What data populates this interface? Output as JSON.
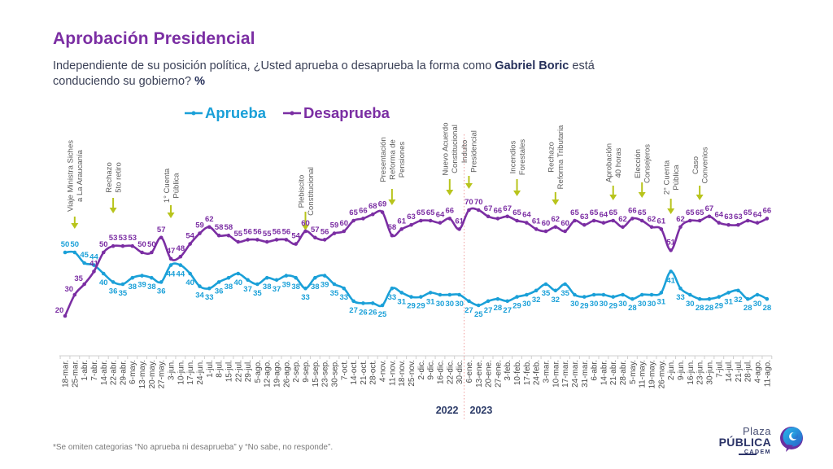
{
  "header": {
    "title": "Aprobación Presidencial",
    "subtitle": {
      "line1_pre": "Independiente de su posición política, ¿Usted aprueba o desaprueba la forma como ",
      "line1_bold": "Gabriel Boric",
      "line1_post": " está",
      "line2_pre": "conduciendo su gobierno? ",
      "line2_bold": "%"
    }
  },
  "legend": [
    {
      "label": "Aprueba",
      "color": "#1aa0d8"
    },
    {
      "label": "Desaprueba",
      "color": "#7b2ea3"
    }
  ],
  "chart_data": {
    "type": "line",
    "title": "Aprobación Presidencial",
    "xlabel": "",
    "ylabel": "",
    "ylim": [
      0,
      100
    ],
    "grid": false,
    "legend_position": "top-left",
    "categories": [
      "18-mar.",
      "25-mar.",
      "1-abr.",
      "7-abr.",
      "14-abr.",
      "22-abr.",
      "29-abr.",
      "6-may.",
      "13-may.",
      "20-may.",
      "27-may.",
      "3-jun.",
      "10-jun.",
      "17-jun.",
      "24-jun.",
      "1-jul.",
      "8-jul.",
      "15-jul.",
      "22-jul.",
      "29-jul.",
      "5-ago.",
      "12-ago.",
      "19-ago.",
      "26-ago.",
      "2-sep.",
      "9-sep.",
      "15-sep.",
      "23-sep.",
      "30-sep.",
      "7-oct.",
      "14-oct.",
      "21-oct.",
      "28-oct.",
      "4-nov.",
      "11-nov.",
      "18-nov.",
      "25-nov.",
      "2-dic.",
      "9-dic.",
      "16-dic.",
      "22-dic.",
      "30-dic.",
      "6-ene.",
      "13-ene.",
      "20-ene.",
      "27-ene.",
      "3-feb.",
      "10-feb.",
      "17-feb.",
      "24-feb.",
      "3-mar.",
      "10-mar.",
      "17-mar.",
      "24-mar.",
      "31-mar.",
      "6-abr.",
      "14-abr.",
      "21-abr.",
      "28-abr.",
      "5-may.",
      "11-may.",
      "19-may.",
      "26-may.",
      "2-jun.",
      "9-jun.",
      "16-jun.",
      "23-jun.",
      "30-jun.",
      "7-jul.",
      "14-jul.",
      "21-jul.",
      "28-jul.",
      "4-ago.",
      "11-ago."
    ],
    "series": [
      {
        "name": "Aprueba",
        "color": "#1aa0d8",
        "values": [
          50,
          50,
          45,
          44,
          40,
          36,
          35,
          38,
          39,
          38,
          36,
          44,
          44,
          40,
          34,
          33,
          36,
          38,
          40,
          37,
          35,
          38,
          37,
          39,
          38,
          33,
          38,
          39,
          35,
          33,
          27,
          26,
          26,
          25,
          33,
          31,
          29,
          29,
          31,
          30,
          30,
          30,
          27,
          25,
          27,
          28,
          27,
          29,
          30,
          32,
          35,
          32,
          35,
          30,
          29,
          30,
          30,
          29,
          30,
          28,
          30,
          30,
          31,
          41,
          33,
          30,
          28,
          28,
          29,
          31,
          32,
          28,
          30,
          28
        ]
      },
      {
        "name": "Desaprueba",
        "color": "#7b2ea3",
        "values": [
          20,
          30,
          35,
          41,
          50,
          53,
          53,
          53,
          50,
          50,
          57,
          47,
          48,
          54,
          59,
          62,
          58,
          58,
          55,
          56,
          56,
          55,
          56,
          56,
          54,
          60,
          57,
          56,
          59,
          60,
          65,
          66,
          68,
          69,
          58,
          61,
          63,
          65,
          65,
          64,
          66,
          61,
          70,
          70,
          67,
          66,
          67,
          65,
          64,
          61,
          60,
          62,
          60,
          65,
          63,
          65,
          64,
          65,
          62,
          66,
          65,
          62,
          61,
          51,
          62,
          65,
          65,
          67,
          64,
          63,
          63,
          65,
          64,
          66
        ]
      }
    ],
    "year_divider": {
      "after": "30-dic.",
      "labels": [
        "2022",
        "2023"
      ]
    },
    "annotations": [
      {
        "date": "25-mar.",
        "lines": [
          "Viaje Ministra Siches",
          "a La Araucanía"
        ]
      },
      {
        "date": "22-abr.",
        "lines": [
          "Rechazo",
          "5to retiro"
        ]
      },
      {
        "date": "3-jun.",
        "lines": [
          "1° Cuenta",
          "Pública"
        ]
      },
      {
        "date": "9-sep.",
        "lines": [
          "Plebiscito",
          "Constitucional"
        ]
      },
      {
        "date": "11-nov.",
        "lines": [
          "Presentación",
          "Reforma de",
          "Pensiones"
        ]
      },
      {
        "date": "22-dic.",
        "lines": [
          "Nuevo Acuerdo",
          "Constitucional"
        ]
      },
      {
        "date": "6-ene.",
        "lines": [
          "Indulto",
          "Presidencial"
        ]
      },
      {
        "date": "10-feb.",
        "lines": [
          "Incendios",
          "Forestales"
        ]
      },
      {
        "date": "10-mar.",
        "lines": [
          "Rechazo",
          "Reforma Tributaria"
        ]
      },
      {
        "date": "21-abr.",
        "lines": [
          "Aprobación",
          "40 horas"
        ]
      },
      {
        "date": "11-may.",
        "lines": [
          "Elección",
          "Consejeros"
        ]
      },
      {
        "date": "2-jun.",
        "lines": [
          "2° Cuenta",
          "Pública"
        ]
      },
      {
        "date": "23-jun.",
        "lines": [
          "Caso",
          "Convenios"
        ]
      }
    ],
    "annotation_color": "#b8c41c"
  },
  "footer": {
    "note": "*Se omiten categorias “No aprueba ni desaprueba” y “No sabe, no responde”."
  },
  "logo": {
    "line1": "Plaza",
    "line2": "PÚBLICA",
    "line3": "CADEM"
  }
}
